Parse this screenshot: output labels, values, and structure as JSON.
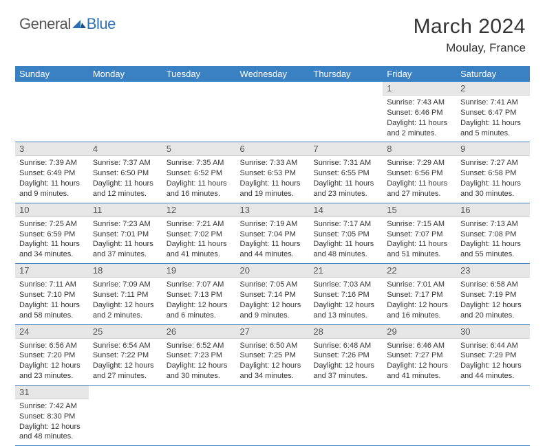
{
  "brand": {
    "part1": "General",
    "part2": "Blue"
  },
  "title": "March 2024",
  "location": "Moulay, France",
  "colors": {
    "header_bg": "#3a81c4",
    "header_fg": "#ffffff",
    "daynum_bg": "#e6e6e6",
    "cell_border": "#3a81c4",
    "brand_blue": "#2c6fb3"
  },
  "dayNames": [
    "Sunday",
    "Monday",
    "Tuesday",
    "Wednesday",
    "Thursday",
    "Friday",
    "Saturday"
  ],
  "weeks": [
    [
      {
        "n": "",
        "sr": "",
        "ss": "",
        "dl": ""
      },
      {
        "n": "",
        "sr": "",
        "ss": "",
        "dl": ""
      },
      {
        "n": "",
        "sr": "",
        "ss": "",
        "dl": ""
      },
      {
        "n": "",
        "sr": "",
        "ss": "",
        "dl": ""
      },
      {
        "n": "",
        "sr": "",
        "ss": "",
        "dl": ""
      },
      {
        "n": "1",
        "sr": "Sunrise: 7:43 AM",
        "ss": "Sunset: 6:46 PM",
        "dl": "Daylight: 11 hours and 2 minutes."
      },
      {
        "n": "2",
        "sr": "Sunrise: 7:41 AM",
        "ss": "Sunset: 6:47 PM",
        "dl": "Daylight: 11 hours and 5 minutes."
      }
    ],
    [
      {
        "n": "3",
        "sr": "Sunrise: 7:39 AM",
        "ss": "Sunset: 6:49 PM",
        "dl": "Daylight: 11 hours and 9 minutes."
      },
      {
        "n": "4",
        "sr": "Sunrise: 7:37 AM",
        "ss": "Sunset: 6:50 PM",
        "dl": "Daylight: 11 hours and 12 minutes."
      },
      {
        "n": "5",
        "sr": "Sunrise: 7:35 AM",
        "ss": "Sunset: 6:52 PM",
        "dl": "Daylight: 11 hours and 16 minutes."
      },
      {
        "n": "6",
        "sr": "Sunrise: 7:33 AM",
        "ss": "Sunset: 6:53 PM",
        "dl": "Daylight: 11 hours and 19 minutes."
      },
      {
        "n": "7",
        "sr": "Sunrise: 7:31 AM",
        "ss": "Sunset: 6:55 PM",
        "dl": "Daylight: 11 hours and 23 minutes."
      },
      {
        "n": "8",
        "sr": "Sunrise: 7:29 AM",
        "ss": "Sunset: 6:56 PM",
        "dl": "Daylight: 11 hours and 27 minutes."
      },
      {
        "n": "9",
        "sr": "Sunrise: 7:27 AM",
        "ss": "Sunset: 6:58 PM",
        "dl": "Daylight: 11 hours and 30 minutes."
      }
    ],
    [
      {
        "n": "10",
        "sr": "Sunrise: 7:25 AM",
        "ss": "Sunset: 6:59 PM",
        "dl": "Daylight: 11 hours and 34 minutes."
      },
      {
        "n": "11",
        "sr": "Sunrise: 7:23 AM",
        "ss": "Sunset: 7:01 PM",
        "dl": "Daylight: 11 hours and 37 minutes."
      },
      {
        "n": "12",
        "sr": "Sunrise: 7:21 AM",
        "ss": "Sunset: 7:02 PM",
        "dl": "Daylight: 11 hours and 41 minutes."
      },
      {
        "n": "13",
        "sr": "Sunrise: 7:19 AM",
        "ss": "Sunset: 7:04 PM",
        "dl": "Daylight: 11 hours and 44 minutes."
      },
      {
        "n": "14",
        "sr": "Sunrise: 7:17 AM",
        "ss": "Sunset: 7:05 PM",
        "dl": "Daylight: 11 hours and 48 minutes."
      },
      {
        "n": "15",
        "sr": "Sunrise: 7:15 AM",
        "ss": "Sunset: 7:07 PM",
        "dl": "Daylight: 11 hours and 51 minutes."
      },
      {
        "n": "16",
        "sr": "Sunrise: 7:13 AM",
        "ss": "Sunset: 7:08 PM",
        "dl": "Daylight: 11 hours and 55 minutes."
      }
    ],
    [
      {
        "n": "17",
        "sr": "Sunrise: 7:11 AM",
        "ss": "Sunset: 7:10 PM",
        "dl": "Daylight: 11 hours and 58 minutes."
      },
      {
        "n": "18",
        "sr": "Sunrise: 7:09 AM",
        "ss": "Sunset: 7:11 PM",
        "dl": "Daylight: 12 hours and 2 minutes."
      },
      {
        "n": "19",
        "sr": "Sunrise: 7:07 AM",
        "ss": "Sunset: 7:13 PM",
        "dl": "Daylight: 12 hours and 6 minutes."
      },
      {
        "n": "20",
        "sr": "Sunrise: 7:05 AM",
        "ss": "Sunset: 7:14 PM",
        "dl": "Daylight: 12 hours and 9 minutes."
      },
      {
        "n": "21",
        "sr": "Sunrise: 7:03 AM",
        "ss": "Sunset: 7:16 PM",
        "dl": "Daylight: 12 hours and 13 minutes."
      },
      {
        "n": "22",
        "sr": "Sunrise: 7:01 AM",
        "ss": "Sunset: 7:17 PM",
        "dl": "Daylight: 12 hours and 16 minutes."
      },
      {
        "n": "23",
        "sr": "Sunrise: 6:58 AM",
        "ss": "Sunset: 7:19 PM",
        "dl": "Daylight: 12 hours and 20 minutes."
      }
    ],
    [
      {
        "n": "24",
        "sr": "Sunrise: 6:56 AM",
        "ss": "Sunset: 7:20 PM",
        "dl": "Daylight: 12 hours and 23 minutes."
      },
      {
        "n": "25",
        "sr": "Sunrise: 6:54 AM",
        "ss": "Sunset: 7:22 PM",
        "dl": "Daylight: 12 hours and 27 minutes."
      },
      {
        "n": "26",
        "sr": "Sunrise: 6:52 AM",
        "ss": "Sunset: 7:23 PM",
        "dl": "Daylight: 12 hours and 30 minutes."
      },
      {
        "n": "27",
        "sr": "Sunrise: 6:50 AM",
        "ss": "Sunset: 7:25 PM",
        "dl": "Daylight: 12 hours and 34 minutes."
      },
      {
        "n": "28",
        "sr": "Sunrise: 6:48 AM",
        "ss": "Sunset: 7:26 PM",
        "dl": "Daylight: 12 hours and 37 minutes."
      },
      {
        "n": "29",
        "sr": "Sunrise: 6:46 AM",
        "ss": "Sunset: 7:27 PM",
        "dl": "Daylight: 12 hours and 41 minutes."
      },
      {
        "n": "30",
        "sr": "Sunrise: 6:44 AM",
        "ss": "Sunset: 7:29 PM",
        "dl": "Daylight: 12 hours and 44 minutes."
      }
    ],
    [
      {
        "n": "31",
        "sr": "Sunrise: 7:42 AM",
        "ss": "Sunset: 8:30 PM",
        "dl": "Daylight: 12 hours and 48 minutes."
      },
      {
        "n": "",
        "sr": "",
        "ss": "",
        "dl": ""
      },
      {
        "n": "",
        "sr": "",
        "ss": "",
        "dl": ""
      },
      {
        "n": "",
        "sr": "",
        "ss": "",
        "dl": ""
      },
      {
        "n": "",
        "sr": "",
        "ss": "",
        "dl": ""
      },
      {
        "n": "",
        "sr": "",
        "ss": "",
        "dl": ""
      },
      {
        "n": "",
        "sr": "",
        "ss": "",
        "dl": ""
      }
    ]
  ]
}
